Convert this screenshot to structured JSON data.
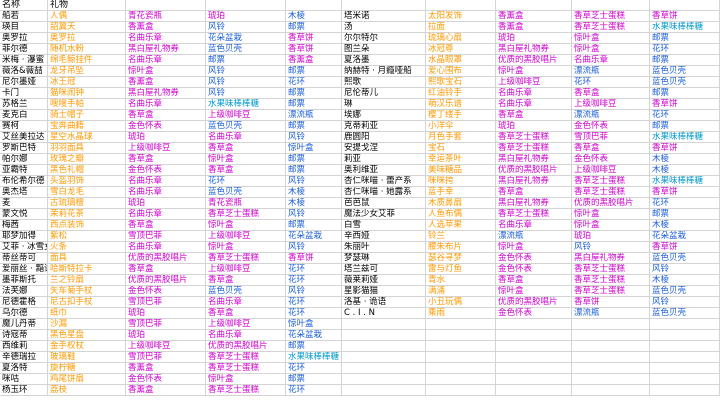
{
  "header": {
    "name": "名称",
    "gift": "礼物"
  },
  "left_rows": [
    [
      [
        "船若",
        "n"
      ],
      [
        "人偶",
        "o"
      ],
      [
        "青花瓷瓶",
        "m"
      ],
      [
        "琥珀",
        "m"
      ],
      [
        "木棱",
        "b"
      ]
    ],
    [
      [
        "瑛目",
        "n"
      ],
      [
        "韶翼天",
        "o"
      ],
      [
        "香薰盒",
        "m"
      ],
      [
        "风铃",
        "b"
      ],
      [
        "邮票",
        "b"
      ]
    ],
    [
      [
        "奥罗拉",
        "n"
      ],
      [
        "奥罗拉",
        "o"
      ],
      [
        "名曲乐章",
        "m"
      ],
      [
        "花朵盆栽",
        "b"
      ],
      [
        "香草饼",
        "m"
      ]
    ],
    [
      [
        "菲尔德",
        "n"
      ],
      [
        "随机水粉",
        "o"
      ],
      [
        "黑白屋礼物券",
        "m"
      ],
      [
        "蓝色贝壳",
        "b"
      ],
      [
        "香草饼",
        "m"
      ]
    ],
    [
      [
        "米梅 · 瀑蜜",
        "n"
      ],
      [
        "绵毛鲸挂件",
        "o"
      ],
      [
        "名曲乐章",
        "m"
      ],
      [
        "邮票",
        "b"
      ],
      [
        "香薰盒",
        "m"
      ]
    ],
    [
      [
        "薇洛&薇喆",
        "n"
      ],
      [
        "龙牙吊坠",
        "o"
      ],
      [
        "惊叶盒",
        "m"
      ],
      [
        "风铃",
        "b"
      ],
      [
        "邮票",
        "b"
      ]
    ],
    [
      [
        "尼尔墨娅",
        "n"
      ],
      [
        "冰王冠",
        "o"
      ],
      [
        "香薰盒",
        "m"
      ],
      [
        "风铃",
        "b"
      ],
      [
        "花环",
        "b"
      ]
    ],
    [
      [
        "卡门",
        "n"
      ],
      [
        "猫咪闹钟",
        "o"
      ],
      [
        "黑白屋礼物券",
        "m"
      ],
      [
        "风铃",
        "b"
      ],
      [
        "邮票",
        "b"
      ]
    ],
    [
      [
        "苏格兰",
        "n"
      ],
      [
        "嗖嗖手帕",
        "o"
      ],
      [
        "名曲乐章",
        "m"
      ],
      [
        "水果味棒棒糖",
        "c"
      ],
      [
        "邮票",
        "b"
      ]
    ],
    [
      [
        "麦克白",
        "n"
      ],
      [
        "骑士帽子",
        "o"
      ],
      [
        "香草盒",
        "m"
      ],
      [
        "上级咖啡豆",
        "m"
      ],
      [
        "漂流瓶",
        "b"
      ]
    ],
    [
      [
        "赛柯",
        "n"
      ],
      [
        "宝奔曲籍",
        "o"
      ],
      [
        "金色怀表",
        "m"
      ],
      [
        "蓝色贝壳",
        "b"
      ],
      [
        "邮票",
        "b"
      ]
    ],
    [
      [
        "艾丝美拉达",
        "n"
      ],
      [
        "星空水晶球",
        "o"
      ],
      [
        "琥珀",
        "m"
      ],
      [
        "名曲乐章",
        "m"
      ],
      [
        "风铃",
        "b"
      ]
    ],
    [
      [
        "罗斯巴特",
        "n"
      ],
      [
        "羽羽面具",
        "o"
      ],
      [
        "上级咖啡豆",
        "m"
      ],
      [
        "香草盒",
        "m"
      ],
      [
        "惊叶盒",
        "b"
      ]
    ],
    [
      [
        "帕尔娜",
        "n"
      ],
      [
        "玫瑰之瓣",
        "o"
      ],
      [
        "香草盒",
        "m"
      ],
      [
        "惊叶盒",
        "m"
      ],
      [
        "邮票",
        "b"
      ]
    ],
    [
      [
        "亚霸特",
        "n"
      ],
      [
        "黑色礼帽",
        "o"
      ],
      [
        "金色怀表",
        "m"
      ],
      [
        "香草盒",
        "m"
      ],
      [
        "邮票",
        "b"
      ]
    ],
    [
      [
        "布伦希尔德",
        "n"
      ],
      [
        "头盔羽饰",
        "o"
      ],
      [
        "名曲乐章",
        "m"
      ],
      [
        "花环",
        "b"
      ],
      [
        "风铃",
        "b"
      ]
    ],
    [
      [
        "奥杰塔",
        "n"
      ],
      [
        "雪白龙毛",
        "o"
      ],
      [
        "名曲乐章",
        "m"
      ],
      [
        "蓝色贝壳",
        "b"
      ],
      [
        "木棱",
        "b"
      ]
    ],
    [
      [
        "麦",
        "n"
      ],
      [
        "古琉璃檀",
        "o"
      ],
      [
        "琥珀",
        "m"
      ],
      [
        "青花瓷瓶",
        "m"
      ],
      [
        "木棱",
        "b"
      ]
    ],
    [
      [
        "蒙文悦",
        "n"
      ],
      [
        "茉莉花茶",
        "o"
      ],
      [
        "名曲乐章",
        "m"
      ],
      [
        "香草芝士蛋糕",
        "m"
      ],
      [
        "风铃",
        "b"
      ]
    ],
    [
      [
        "梅茜",
        "n"
      ],
      [
        "西点装饰",
        "o"
      ],
      [
        "香草盒",
        "m"
      ],
      [
        "惊叶盒",
        "m"
      ],
      [
        "邮票",
        "b"
      ]
    ],
    [
      [
        "耶梦加得",
        "n"
      ],
      [
        "紫松",
        "o"
      ],
      [
        "雪顶巴菲",
        "m"
      ],
      [
        "上级咖啡豆",
        "m"
      ],
      [
        "花朵盆栽",
        "b"
      ]
    ],
    [
      [
        "艾菲 · 冰雪女王",
        "n"
      ],
      [
        "火条",
        "o"
      ],
      [
        "名曲乐章",
        "m"
      ],
      [
        "惊叶盒",
        "m"
      ],
      [
        "风铃",
        "b"
      ]
    ],
    [
      [
        "蒂丝蒂可",
        "n"
      ],
      [
        "面具",
        "o"
      ],
      [
        "优质的黑胶唱片",
        "m"
      ],
      [
        "香草芝士蛋糕",
        "m"
      ],
      [
        "香草饼",
        "m"
      ]
    ],
    [
      [
        "爱丽丝 · 黯语",
        "n"
      ],
      [
        "哈斯特拉卡",
        "o"
      ],
      [
        "香草盒",
        "m"
      ],
      [
        "上级咖啡豆",
        "m"
      ],
      [
        "花环",
        "b"
      ]
    ],
    [
      [
        "墨菲斯托",
        "n"
      ],
      [
        "兰之铃扇",
        "o"
      ],
      [
        "优质的黑胶唱片",
        "m"
      ],
      [
        "香草盒",
        "m"
      ],
      [
        "花环",
        "b"
      ]
    ],
    [
      [
        "法芙娜",
        "n"
      ],
      [
        "矢车菊手杖",
        "o"
      ],
      [
        "金色怀表",
        "m"
      ],
      [
        "蓝色贝壳",
        "b"
      ],
      [
        "风铃",
        "b"
      ]
    ],
    [
      [
        "尼德霍格",
        "n"
      ],
      [
        "尼古扣手杖",
        "o"
      ],
      [
        "雪顶巴菲",
        "m"
      ],
      [
        "名曲乐章",
        "m"
      ],
      [
        "花环",
        "b"
      ]
    ],
    [
      [
        "乌尔德",
        "n"
      ],
      [
        "纸巾",
        "o"
      ],
      [
        "琥珀",
        "m"
      ],
      [
        "香草盒",
        "m"
      ],
      [
        "花环",
        "b"
      ]
    ],
    [
      [
        "魔儿丹蒂",
        "n"
      ],
      [
        "沙漏",
        "o"
      ],
      [
        "雪顶巴菲",
        "m"
      ],
      [
        "上级咖啡豆",
        "m"
      ],
      [
        "惊叶盒",
        "b"
      ]
    ],
    [
      [
        "诗寇蒂",
        "n"
      ],
      [
        "黑色星盘",
        "o"
      ],
      [
        "琥珀",
        "m"
      ],
      [
        "名曲乐章",
        "m"
      ],
      [
        "花朵盆栽",
        "b"
      ]
    ],
    [
      [
        "西维莉",
        "n"
      ],
      [
        "金手权杖",
        "o"
      ],
      [
        "上级咖啡豆",
        "m"
      ],
      [
        "优质的黑胶唱片",
        "m"
      ],
      [
        "邮票",
        "b"
      ]
    ],
    [
      [
        "辛德瑞拉",
        "n"
      ],
      [
        "玻璃鞋",
        "o"
      ],
      [
        "雪顶巴菲",
        "m"
      ],
      [
        "香草芝士蛋糕",
        "m"
      ],
      [
        "水果味棒棒糖",
        "c"
      ]
    ],
    [
      [
        "夏洛特",
        "n"
      ],
      [
        "旋柠糖",
        "o"
      ],
      [
        "香薰盒",
        "m"
      ],
      [
        "香草芝士蛋糕",
        "m"
      ],
      [
        "花环",
        "b"
      ]
    ],
    [
      [
        "咪咕",
        "n"
      ],
      [
        "鸡尾饼扇",
        "o"
      ],
      [
        "金色怀表",
        "m"
      ],
      [
        "惊叶盒",
        "m"
      ],
      [
        "邮票",
        "b"
      ]
    ],
    [
      [
        "杨玉环",
        "n"
      ],
      [
        "荔枝",
        "o"
      ],
      [
        "香薰盒",
        "m"
      ],
      [
        "香草芝士蛋糕",
        "m"
      ],
      [
        "花环",
        "b"
      ]
    ]
  ],
  "right_rows": [
    [
      [
        "塔米诺",
        "n"
      ],
      [
        "太阳发饰",
        "o"
      ],
      [
        "香薰盒",
        "m"
      ],
      [
        "香草芝士蛋糕",
        "m"
      ],
      [
        "香草饼",
        "m"
      ]
    ],
    [
      [
        "汤",
        "n"
      ],
      [
        "拉面",
        "o"
      ],
      [
        "香薰盒",
        "m"
      ],
      [
        "香草芝士蛋糕",
        "m"
      ],
      [
        "水果味棒棒糖",
        "c"
      ]
    ],
    [
      [
        "尔尔特尔",
        "n"
      ],
      [
        "琉璃心扇",
        "o"
      ],
      [
        "琥珀",
        "m"
      ],
      [
        "惊叶盒",
        "m"
      ],
      [
        "邮票",
        "b"
      ]
    ],
    [
      [
        "图兰朵",
        "n"
      ],
      [
        "冰冠尊",
        "o"
      ],
      [
        "黑白屋礼物券",
        "m"
      ],
      [
        "惊叶盒",
        "m"
      ],
      [
        "花环",
        "b"
      ]
    ],
    [
      [
        "夏洛墨",
        "n"
      ],
      [
        "水晶眼罩",
        "o"
      ],
      [
        "优质的黑胶唱片",
        "m"
      ],
      [
        "名曲乐章",
        "m"
      ],
      [
        "邮票",
        "b"
      ]
    ],
    [
      [
        "纳赫特 · 月瘾哑船",
        "n"
      ],
      [
        "爱心围布",
        "o"
      ],
      [
        "惊叶盒",
        "m"
      ],
      [
        "漂流瓶",
        "b"
      ],
      [
        "蓝色贝壳",
        "b"
      ]
    ],
    [
      [
        "熙歌",
        "n"
      ],
      [
        "熙歌宝石",
        "o"
      ],
      [
        "上级咖啡豆",
        "m"
      ],
      [
        "花环",
        "b"
      ],
      [
        "蓝色贝壳",
        "b"
      ]
    ],
    [
      [
        "尼伦蒂儿",
        "n"
      ],
      [
        "红油铃手",
        "o"
      ],
      [
        "名曲乐章",
        "m"
      ],
      [
        "香草盒",
        "m"
      ],
      [
        "邮票",
        "b"
      ]
    ],
    [
      [
        "琳",
        "n"
      ],
      [
        "萌汉乐谱",
        "o"
      ],
      [
        "名曲乐章",
        "m"
      ],
      [
        "上级咖啡豆",
        "m"
      ],
      [
        "香草饼",
        "m"
      ]
    ],
    [
      [
        "埃娜",
        "n"
      ],
      [
        "樱丁缕手",
        "o"
      ],
      [
        "香草盒",
        "m"
      ],
      [
        "漂流瓶",
        "b"
      ],
      [
        "花环",
        "b"
      ]
    ],
    [
      [
        "克蒂莉亚",
        "n"
      ],
      [
        "小洋伞",
        "o"
      ],
      [
        "琥珀",
        "m"
      ],
      [
        "金色怀表",
        "m"
      ],
      [
        "邮票",
        "b"
      ]
    ],
    [
      [
        "鹿圆阳",
        "n"
      ],
      [
        "月色手套",
        "o"
      ],
      [
        "香草芝士蛋糕",
        "m"
      ],
      [
        "雪顶巴菲",
        "m"
      ],
      [
        "水果味棒棒糖",
        "c"
      ]
    ],
    [
      [
        "安提戈涅",
        "n"
      ],
      [
        "宝石",
        "o"
      ],
      [
        "香草芝士蛋糕",
        "m"
      ],
      [
        "香草盒",
        "m"
      ],
      [
        "香草饼",
        "m"
      ]
    ],
    [
      [
        "莉亚",
        "n"
      ],
      [
        "幸运茶叶",
        "o"
      ],
      [
        "黑白屋礼物券",
        "m"
      ],
      [
        "金色怀表",
        "m"
      ],
      [
        "木棱",
        "b"
      ]
    ],
    [
      [
        "奥利维亚",
        "n"
      ],
      [
        "美味糖品",
        "o"
      ],
      [
        "优质的黑胶唱片",
        "m"
      ],
      [
        "上级咖啡豆",
        "m"
      ],
      [
        "木棱",
        "b"
      ]
    ],
    [
      [
        "杏仁咪喵 · 蕾产系",
        "n"
      ],
      [
        "咪咪挎",
        "o"
      ],
      [
        "黑白屋礼物券",
        "m"
      ],
      [
        "香草芝士蛋糕",
        "m"
      ],
      [
        "水果味棒棒糖",
        "c"
      ]
    ],
    [
      [
        "杏仁咪喵 · 她露系",
        "n"
      ],
      [
        "蓝手幸",
        "o"
      ],
      [
        "香草盒",
        "m"
      ],
      [
        "香草芝士蛋糕",
        "m"
      ],
      [
        "香草饼",
        "m"
      ]
    ],
    [
      [
        "芭芭鼠",
        "n"
      ],
      [
        "木质鼻扇",
        "o"
      ],
      [
        "黑白屋礼物券",
        "m"
      ],
      [
        "优质的黑胶唱片",
        "m"
      ],
      [
        "花环",
        "b"
      ]
    ],
    [
      [
        "魔法少女艾菲",
        "n"
      ],
      [
        "人鱼布偶",
        "o"
      ],
      [
        "香草芝士蛋糕",
        "m"
      ],
      [
        "惊叶盒",
        "m"
      ],
      [
        "邮票",
        "b"
      ]
    ],
    [
      [
        "白雪",
        "n"
      ],
      [
        "人选苹果",
        "o"
      ],
      [
        "名曲乐章",
        "m"
      ],
      [
        "惊叶盒",
        "m"
      ],
      [
        "木棱",
        "b"
      ]
    ],
    [
      [
        "辛西娅",
        "n"
      ],
      [
        "铃兰",
        "o"
      ],
      [
        "漂流瓶",
        "b"
      ],
      [
        "琥珀",
        "m"
      ],
      [
        "花朵盆栽",
        "b"
      ]
    ],
    [
      [
        "朱丽叶",
        "n"
      ],
      [
        "腰朱布片",
        "o"
      ],
      [
        "惊叶盒",
        "m"
      ],
      [
        "风铃",
        "b"
      ],
      [
        "香草饼",
        "m"
      ]
    ],
    [
      [
        "梦瑟琳",
        "n"
      ],
      [
        "瑟谷寻梦",
        "o"
      ],
      [
        "金色怀表",
        "m"
      ],
      [
        "黑白屋礼物券",
        "m"
      ],
      [
        "蓝色贝壳",
        "b"
      ]
    ],
    [
      [
        "塔兰兹可",
        "n"
      ],
      [
        "雷与灯鱼",
        "o"
      ],
      [
        "金色怀表",
        "m"
      ],
      [
        "香草芝士蛋糕",
        "m"
      ],
      [
        "风铃",
        "b"
      ]
    ],
    [
      [
        "薇莱莉娅",
        "n"
      ],
      [
        "青水",
        "o"
      ],
      [
        "香草盒",
        "m"
      ],
      [
        "香草芝士蛋糕",
        "m"
      ],
      [
        "木棱",
        "b"
      ]
    ],
    [
      [
        "星影猫猫",
        "n"
      ],
      [
        "满涌",
        "o"
      ],
      [
        "惊叶盒",
        "m"
      ],
      [
        "香草芝士蛋糕",
        "m"
      ],
      [
        "蓝色贝壳",
        "b"
      ]
    ],
    [
      [
        "洛基 · 诡语",
        "n"
      ],
      [
        "小丑玩偶",
        "o"
      ],
      [
        "优质的黑胶唱片",
        "m"
      ],
      [
        "香草饼",
        "m"
      ],
      [
        "风铃",
        "b"
      ]
    ],
    [
      [
        "C . I . N",
        "n"
      ],
      [
        "乘雨",
        "o"
      ],
      [
        "金色怀表",
        "m"
      ],
      [
        "漂流瓶",
        "b"
      ],
      [
        "蓝色贝壳",
        "b"
      ]
    ]
  ],
  "colors": {
    "n": "#000000",
    "o": "#ff9900",
    "m": "#d000d0",
    "b": "#1a5ed9",
    "c": "#0099cc",
    "grid": "#d4d4d4"
  }
}
